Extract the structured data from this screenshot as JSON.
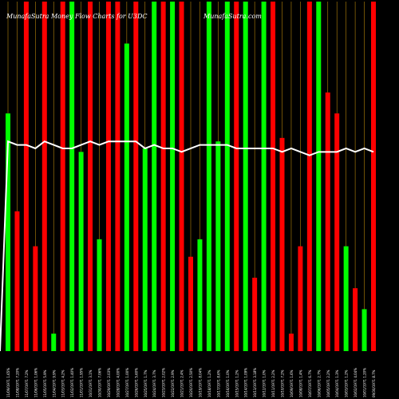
{
  "chart_data": {
    "type": "bar",
    "title": "MunafaSutra  Money Flow  Charts for U3DC",
    "watermark": "MunafaSutra.com",
    "bar_up_color": "#00ff00",
    "bar_down_color": "#ff0000",
    "line_color": "#ffffff",
    "gridline_color": "#b8860b",
    "background": "#000000",
    "ylim": [
      0,
      100
    ],
    "categories": [
      "11/09/1971 1.65%",
      "11/08/1971 7.20%",
      "11/07/1971 7.2%",
      "11/06/1971 1.06%",
      "11/05/1971 5.9%",
      "11/04/1971 9.9%",
      "11/03/1971 4.2%",
      "11/02/1971 1.40%",
      "11/01/1971 1.95%",
      "10/31/1971 3.1%",
      "10/30/1971 7.06%",
      "10/29/1971 2.03%",
      "10/28/1971 4.00%",
      "10/27/1971 1.00%",
      "10/26/1971 5.60%",
      "10/25/1971 1.7%",
      "10/24/1971 3.7%",
      "10/23/1971 2.02%",
      "10/22/1971 2.9%",
      "10/21/1971 2.4%",
      "10/20/1971 2.50%",
      "10/19/1971 8.04%",
      "10/18/1971 1.2%",
      "10/17/1971 8.6%",
      "10/16/1971 1.0%",
      "10/15/1971 1.2%",
      "10/14/1971 1.09%",
      "10/13/1971 3.18%",
      "10/12/1971 1.0%",
      "10/11/1971 2.2%",
      "10/10/1971 7.2%",
      "10/09/1971 1.6%",
      "10/08/1971 1.4%",
      "10/07/1971 6.7%",
      "10/06/1971 2.7%",
      "10/05/1971 2.2%",
      "10/04/1971 1.3%",
      "10/03/1971 1.2%",
      "10/02/1971 4.04%",
      "10/01/1971 1.20%",
      "09/30/1971 8.7%"
    ],
    "values": [
      68,
      40,
      100,
      30,
      100,
      5,
      100,
      100,
      57,
      100,
      32,
      100,
      100,
      88,
      100,
      58,
      100,
      100,
      100,
      100,
      27,
      32,
      100,
      60,
      100,
      100,
      100,
      21,
      100,
      100,
      61,
      5,
      30,
      100,
      100,
      74,
      68,
      30,
      18,
      12,
      100
    ],
    "directions": [
      "up",
      "down",
      "down",
      "down",
      "down",
      "up",
      "down",
      "up",
      "up",
      "down",
      "up",
      "down",
      "down",
      "up",
      "down",
      "up",
      "up",
      "down",
      "up",
      "down",
      "down",
      "up",
      "up",
      "up",
      "up",
      "down",
      "up",
      "down",
      "up",
      "down",
      "down",
      "down",
      "down",
      "down",
      "up",
      "down",
      "down",
      "up",
      "down",
      "up",
      "down"
    ],
    "line_values": [
      60,
      59,
      59,
      58,
      60,
      59,
      58,
      58,
      59,
      60,
      59,
      60,
      60,
      60,
      60,
      58,
      59,
      58,
      58,
      57,
      58,
      59,
      59,
      59,
      59,
      58,
      58,
      58,
      58,
      58,
      57,
      58,
      57,
      56,
      57,
      57,
      57,
      58,
      57,
      58,
      57
    ],
    "gridlines": "vertical",
    "legend": "none"
  }
}
